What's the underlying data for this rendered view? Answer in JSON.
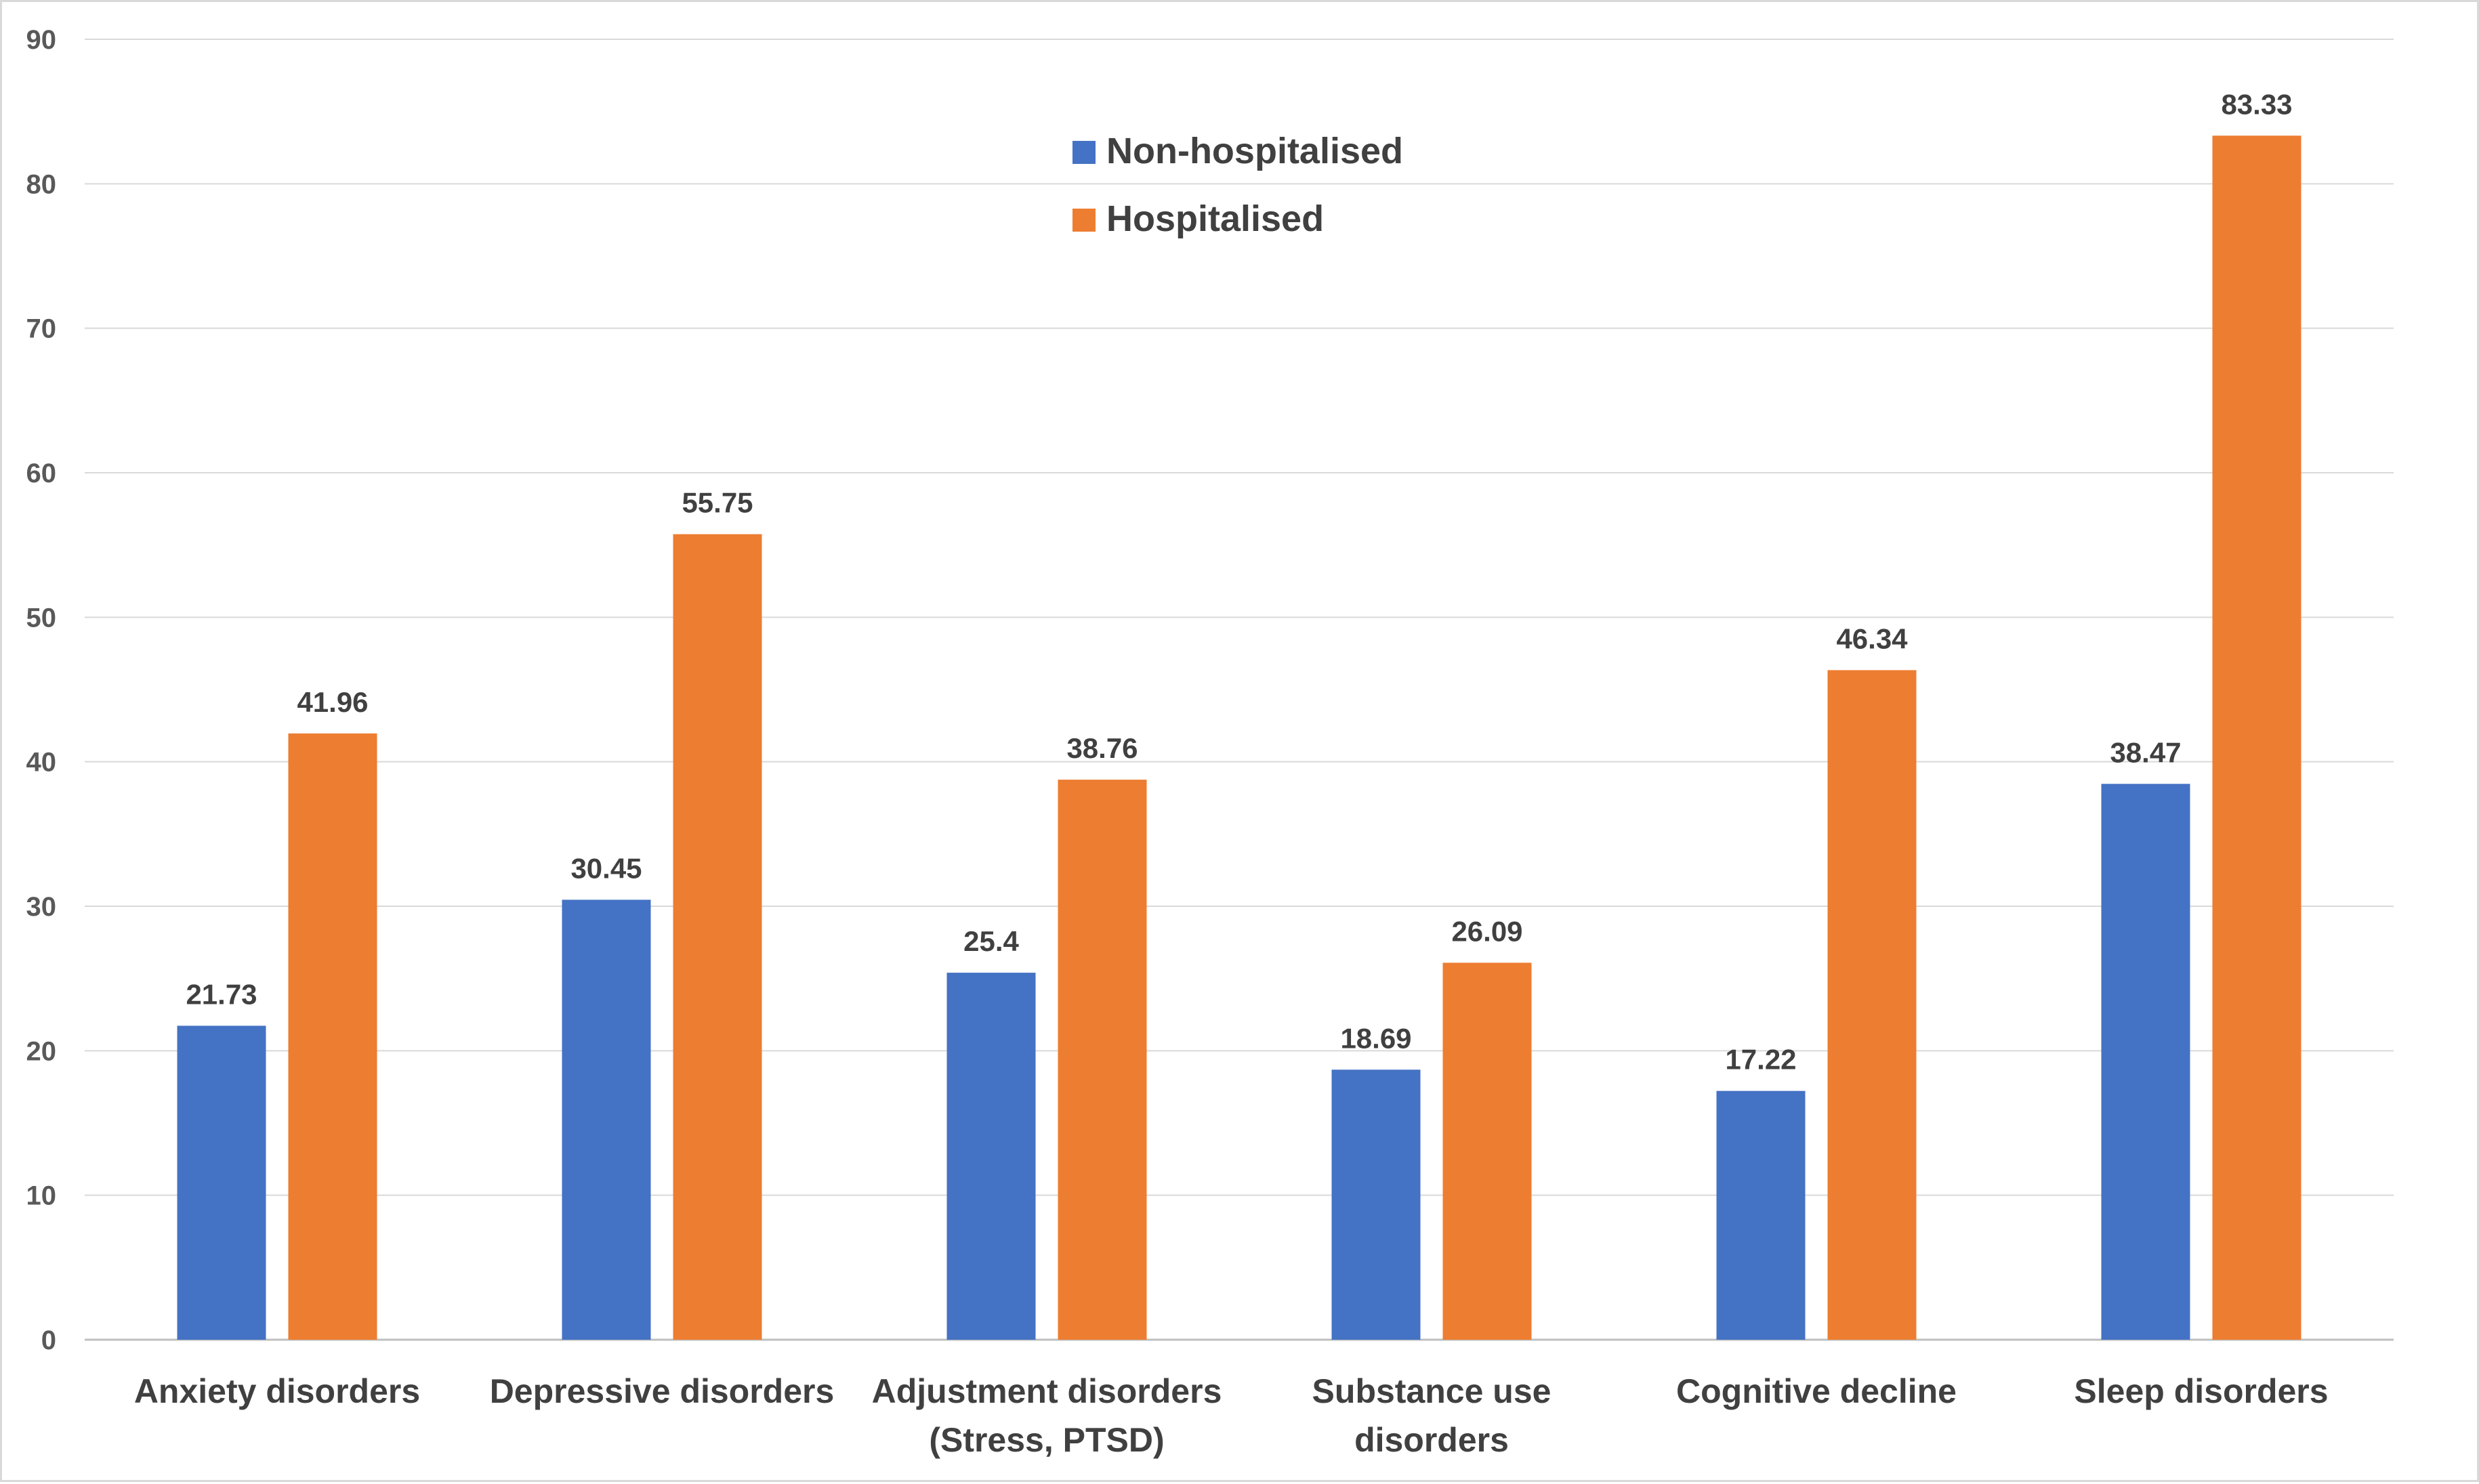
{
  "chart_data": {
    "type": "bar",
    "title": "",
    "xlabel": "",
    "ylabel": "",
    "ylim": [
      0,
      90
    ],
    "yticks": [
      0,
      10,
      20,
      30,
      40,
      50,
      60,
      70,
      80,
      90
    ],
    "grid": true,
    "legend_position": "top-center",
    "categories": [
      [
        "Anxiety disorders"
      ],
      [
        "Depressive disorders"
      ],
      [
        "Adjustment disorders",
        "(Stress, PTSD)"
      ],
      [
        "Substance use",
        "disorders"
      ],
      [
        "Cognitive decline"
      ],
      [
        "Sleep disorders"
      ]
    ],
    "series": [
      {
        "name": "Non-hospitalised",
        "color": "#4472c4",
        "values": [
          21.73,
          30.45,
          25.4,
          18.69,
          17.22,
          38.47
        ]
      },
      {
        "name": "Hospitalised",
        "color": "#ed7d31",
        "values": [
          41.96,
          55.75,
          38.76,
          26.09,
          46.34,
          83.33
        ]
      }
    ]
  }
}
